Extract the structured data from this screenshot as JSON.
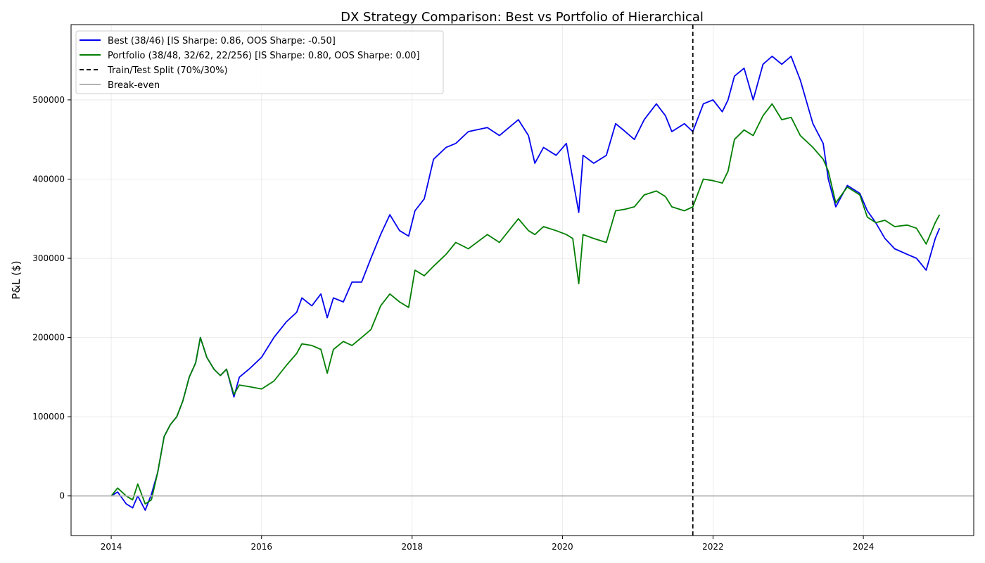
{
  "chart_data": {
    "type": "line",
    "title": "DX Strategy Comparison: Best vs Portfolio of Hierarchical",
    "ylabel": "P&L ($)",
    "xlabel": "",
    "xlim": [
      "2013-06-20",
      "2025-06-20"
    ],
    "ylim": [
      -50000,
      595000
    ],
    "grid": true,
    "legend_position": "top-left",
    "x_ticks": [
      "2014",
      "2016",
      "2018",
      "2020",
      "2022",
      "2024"
    ],
    "x_tick_dates": [
      "2014-01-01",
      "2016-01-01",
      "2018-01-01",
      "2020-01-01",
      "2022-01-01",
      "2024-01-01"
    ],
    "y_ticks": [
      0,
      100000,
      200000,
      300000,
      400000,
      500000
    ],
    "split": {
      "name": "Train/Test Split (70%/30%)",
      "date": "2021-09-25",
      "color": "#000000"
    },
    "break_even": {
      "name": "Break-even",
      "value": 0,
      "color": "#b3b3b3"
    },
    "series": [
      {
        "name": "Best (38/46) [IS Sharpe: 0.86, OOS Sharpe: -0.50]",
        "color": "#0000ee",
        "points": [
          [
            "2014-01-01",
            0
          ],
          [
            "2014-02-01",
            5000
          ],
          [
            "2014-03-15",
            -10000
          ],
          [
            "2014-04-15",
            -15000
          ],
          [
            "2014-05-10",
            0
          ],
          [
            "2014-06-15",
            -18000
          ],
          [
            "2014-07-15",
            2000
          ],
          [
            "2014-08-15",
            30000
          ],
          [
            "2014-09-15",
            75000
          ],
          [
            "2014-10-15",
            90000
          ],
          [
            "2014-11-15",
            100000
          ],
          [
            "2014-12-15",
            120000
          ],
          [
            "2015-01-15",
            150000
          ],
          [
            "2015-02-15",
            168000
          ],
          [
            "2015-03-10",
            200000
          ],
          [
            "2015-04-10",
            175000
          ],
          [
            "2015-05-15",
            160000
          ],
          [
            "2015-06-15",
            152000
          ],
          [
            "2015-07-15",
            160000
          ],
          [
            "2015-08-20",
            125000
          ],
          [
            "2015-09-15",
            150000
          ],
          [
            "2015-11-01",
            160000
          ],
          [
            "2016-01-01",
            175000
          ],
          [
            "2016-03-01",
            200000
          ],
          [
            "2016-05-01",
            220000
          ],
          [
            "2016-06-20",
            232000
          ],
          [
            "2016-07-15",
            250000
          ],
          [
            "2016-09-01",
            240000
          ],
          [
            "2016-10-15",
            255000
          ],
          [
            "2016-11-15",
            225000
          ],
          [
            "2016-12-15",
            250000
          ],
          [
            "2017-02-01",
            245000
          ],
          [
            "2017-03-15",
            270000
          ],
          [
            "2017-05-01",
            270000
          ],
          [
            "2017-06-15",
            300000
          ],
          [
            "2017-08-01",
            330000
          ],
          [
            "2017-09-15",
            355000
          ],
          [
            "2017-11-01",
            335000
          ],
          [
            "2017-12-15",
            328000
          ],
          [
            "2018-01-15",
            360000
          ],
          [
            "2018-03-01",
            375000
          ],
          [
            "2018-04-15",
            425000
          ],
          [
            "2018-06-15",
            440000
          ],
          [
            "2018-08-01",
            445000
          ],
          [
            "2018-10-01",
            460000
          ],
          [
            "2019-01-01",
            465000
          ],
          [
            "2019-03-01",
            455000
          ],
          [
            "2019-06-01",
            475000
          ],
          [
            "2019-07-20",
            455000
          ],
          [
            "2019-08-20",
            420000
          ],
          [
            "2019-10-01",
            440000
          ],
          [
            "2019-12-01",
            430000
          ],
          [
            "2020-01-20",
            445000
          ],
          [
            "2020-02-20",
            400000
          ],
          [
            "2020-03-20",
            358000
          ],
          [
            "2020-04-10",
            430000
          ],
          [
            "2020-06-01",
            420000
          ],
          [
            "2020-08-01",
            430000
          ],
          [
            "2020-09-15",
            470000
          ],
          [
            "2020-11-01",
            460000
          ],
          [
            "2020-12-15",
            450000
          ],
          [
            "2021-02-01",
            475000
          ],
          [
            "2021-04-01",
            495000
          ],
          [
            "2021-05-15",
            480000
          ],
          [
            "2021-06-15",
            460000
          ],
          [
            "2021-08-15",
            470000
          ],
          [
            "2021-09-25",
            460000
          ],
          [
            "2021-11-15",
            495000
          ],
          [
            "2022-01-01",
            500000
          ],
          [
            "2022-02-15",
            485000
          ],
          [
            "2022-03-15",
            500000
          ],
          [
            "2022-04-15",
            530000
          ],
          [
            "2022-06-01",
            540000
          ],
          [
            "2022-07-15",
            500000
          ],
          [
            "2022-09-01",
            545000
          ],
          [
            "2022-10-15",
            555000
          ],
          [
            "2022-12-01",
            545000
          ],
          [
            "2023-01-15",
            555000
          ],
          [
            "2023-03-01",
            525000
          ],
          [
            "2023-05-01",
            470000
          ],
          [
            "2023-06-20",
            445000
          ],
          [
            "2023-07-15",
            400000
          ],
          [
            "2023-08-20",
            365000
          ],
          [
            "2023-10-15",
            392000
          ],
          [
            "2023-12-15",
            382000
          ],
          [
            "2024-01-20",
            360000
          ],
          [
            "2024-03-01",
            345000
          ],
          [
            "2024-04-15",
            325000
          ],
          [
            "2024-06-01",
            312000
          ],
          [
            "2024-08-01",
            305000
          ],
          [
            "2024-09-15",
            300000
          ],
          [
            "2024-11-01",
            285000
          ],
          [
            "2024-12-15",
            325000
          ],
          [
            "2025-01-05",
            338000
          ]
        ]
      },
      {
        "name": "Portfolio (38/48, 32/62, 22/256) [IS Sharpe: 0.80, OOS Sharpe: 0.00]",
        "color": "#007f00",
        "points": [
          [
            "2014-01-01",
            0
          ],
          [
            "2014-02-01",
            10000
          ],
          [
            "2014-03-15",
            0
          ],
          [
            "2014-04-15",
            -5000
          ],
          [
            "2014-05-10",
            15000
          ],
          [
            "2014-06-15",
            -10000
          ],
          [
            "2014-07-15",
            -5000
          ],
          [
            "2014-08-15",
            30000
          ],
          [
            "2014-09-15",
            75000
          ],
          [
            "2014-10-15",
            90000
          ],
          [
            "2014-11-15",
            100000
          ],
          [
            "2014-12-15",
            120000
          ],
          [
            "2015-01-15",
            150000
          ],
          [
            "2015-02-15",
            168000
          ],
          [
            "2015-03-10",
            200000
          ],
          [
            "2015-04-10",
            175000
          ],
          [
            "2015-05-15",
            160000
          ],
          [
            "2015-06-15",
            152000
          ],
          [
            "2015-07-15",
            160000
          ],
          [
            "2015-08-20",
            128000
          ],
          [
            "2015-09-15",
            140000
          ],
          [
            "2015-11-01",
            138000
          ],
          [
            "2016-01-01",
            135000
          ],
          [
            "2016-03-01",
            145000
          ],
          [
            "2016-05-01",
            165000
          ],
          [
            "2016-06-20",
            180000
          ],
          [
            "2016-07-15",
            192000
          ],
          [
            "2016-09-01",
            190000
          ],
          [
            "2016-10-15",
            185000
          ],
          [
            "2016-11-15",
            155000
          ],
          [
            "2016-12-15",
            185000
          ],
          [
            "2017-02-01",
            195000
          ],
          [
            "2017-03-15",
            190000
          ],
          [
            "2017-05-01",
            200000
          ],
          [
            "2017-06-15",
            210000
          ],
          [
            "2017-08-01",
            240000
          ],
          [
            "2017-09-15",
            255000
          ],
          [
            "2017-11-01",
            245000
          ],
          [
            "2017-12-15",
            238000
          ],
          [
            "2018-01-15",
            285000
          ],
          [
            "2018-03-01",
            278000
          ],
          [
            "2018-04-15",
            290000
          ],
          [
            "2018-06-15",
            305000
          ],
          [
            "2018-08-01",
            320000
          ],
          [
            "2018-10-01",
            312000
          ],
          [
            "2019-01-01",
            330000
          ],
          [
            "2019-03-01",
            320000
          ],
          [
            "2019-06-01",
            350000
          ],
          [
            "2019-07-20",
            335000
          ],
          [
            "2019-08-20",
            330000
          ],
          [
            "2019-10-01",
            340000
          ],
          [
            "2019-12-01",
            335000
          ],
          [
            "2020-01-20",
            330000
          ],
          [
            "2020-02-20",
            325000
          ],
          [
            "2020-03-20",
            268000
          ],
          [
            "2020-04-10",
            330000
          ],
          [
            "2020-06-01",
            325000
          ],
          [
            "2020-08-01",
            320000
          ],
          [
            "2020-09-15",
            360000
          ],
          [
            "2020-11-01",
            362000
          ],
          [
            "2020-12-15",
            365000
          ],
          [
            "2021-02-01",
            380000
          ],
          [
            "2021-04-01",
            385000
          ],
          [
            "2021-05-15",
            378000
          ],
          [
            "2021-06-15",
            365000
          ],
          [
            "2021-08-15",
            360000
          ],
          [
            "2021-09-25",
            365000
          ],
          [
            "2021-11-15",
            400000
          ],
          [
            "2022-01-01",
            398000
          ],
          [
            "2022-02-15",
            395000
          ],
          [
            "2022-03-15",
            410000
          ],
          [
            "2022-04-15",
            450000
          ],
          [
            "2022-06-01",
            462000
          ],
          [
            "2022-07-15",
            455000
          ],
          [
            "2022-09-01",
            480000
          ],
          [
            "2022-10-15",
            495000
          ],
          [
            "2022-12-01",
            475000
          ],
          [
            "2023-01-15",
            478000
          ],
          [
            "2023-03-01",
            455000
          ],
          [
            "2023-05-01",
            440000
          ],
          [
            "2023-06-20",
            425000
          ],
          [
            "2023-07-15",
            410000
          ],
          [
            "2023-08-20",
            370000
          ],
          [
            "2023-10-15",
            390000
          ],
          [
            "2023-12-15",
            380000
          ],
          [
            "2024-01-20",
            352000
          ],
          [
            "2024-03-01",
            345000
          ],
          [
            "2024-04-15",
            348000
          ],
          [
            "2024-06-01",
            340000
          ],
          [
            "2024-08-01",
            342000
          ],
          [
            "2024-09-15",
            338000
          ],
          [
            "2024-11-01",
            318000
          ],
          [
            "2024-12-15",
            345000
          ],
          [
            "2025-01-05",
            355000
          ]
        ]
      }
    ]
  }
}
